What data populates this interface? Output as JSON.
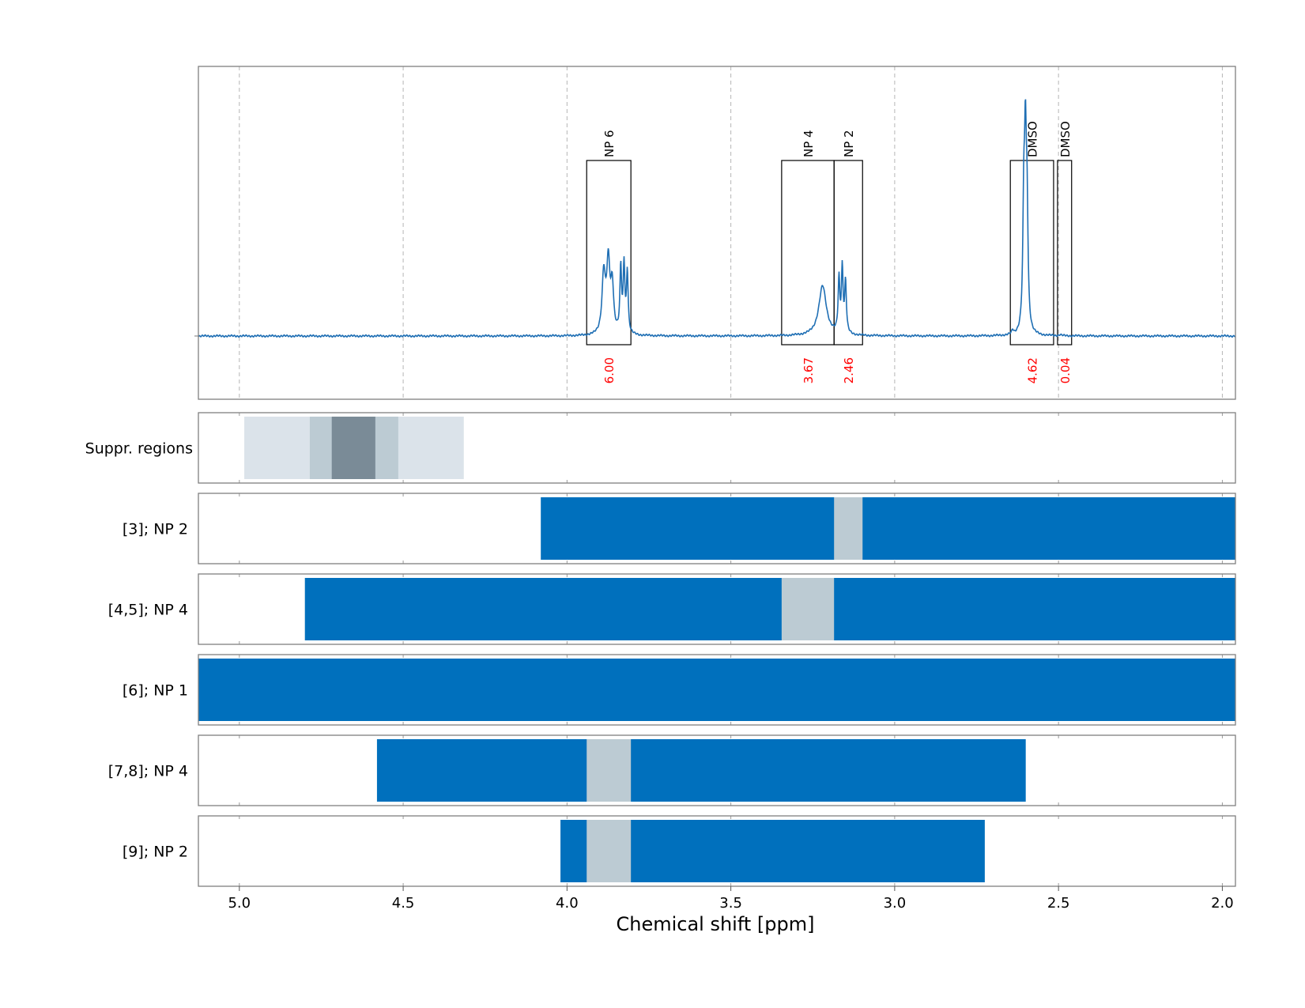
{
  "chart_data": {
    "type": "line",
    "xlabel": "Chemical shift [ppm]",
    "x_axis": {
      "lim": [
        5.125,
        1.96
      ],
      "reversed": true,
      "ticks": [
        "5.0",
        "4.5",
        "4.0",
        "3.5",
        "3.0",
        "2.5",
        "2.0"
      ],
      "tick_values": [
        5.0,
        4.5,
        4.0,
        3.5,
        3.0,
        2.5,
        2.0
      ]
    },
    "grid": true,
    "colors": {
      "spectrum": "#1f6fb4",
      "bar": "#0070bd",
      "gap": "#bccbd3",
      "integral": "#ff0000",
      "box": "#000000",
      "axis_frame": "#808080"
    },
    "spectrum": {
      "baseline_y": 0.0,
      "peaks": [
        {
          "x": 3.888,
          "y": 0.22,
          "w": 0.006
        },
        {
          "x": 3.874,
          "y": 0.26,
          "w": 0.006
        },
        {
          "x": 3.862,
          "y": 0.17,
          "w": 0.005
        },
        {
          "x": 3.836,
          "y": 0.24,
          "w": 0.003
        },
        {
          "x": 3.826,
          "y": 0.25,
          "w": 0.003
        },
        {
          "x": 3.816,
          "y": 0.23,
          "w": 0.003
        },
        {
          "x": 3.22,
          "y": 0.185,
          "w": 0.014
        },
        {
          "x": 3.17,
          "y": 0.2,
          "w": 0.003
        },
        {
          "x": 3.16,
          "y": 0.24,
          "w": 0.003
        },
        {
          "x": 3.15,
          "y": 0.19,
          "w": 0.003
        },
        {
          "x": 2.606,
          "y": 0.42,
          "w": 0.0035
        },
        {
          "x": 2.601,
          "y": 0.62,
          "w": 0.0035
        },
        {
          "x": 2.596,
          "y": 0.4,
          "w": 0.0035
        },
        {
          "x": 2.64,
          "y": 0.015,
          "w": 0.003
        },
        {
          "x": 2.495,
          "y": 0.004,
          "w": 0.004
        }
      ]
    },
    "annotations": [
      {
        "label": "NP 6",
        "x_from": 3.94,
        "x_to": 3.805,
        "integral": "6.00"
      },
      {
        "label": "NP 4",
        "x_from": 3.345,
        "x_to": 3.185,
        "integral": "3.67"
      },
      {
        "label": "NP 2",
        "x_from": 3.185,
        "x_to": 3.098,
        "integral": "2.46"
      },
      {
        "label": "DMSO",
        "x_from": 2.647,
        "x_to": 2.515,
        "integral": "4.62"
      },
      {
        "label": "DMSO",
        "x_from": 2.503,
        "x_to": 2.46,
        "integral": "0.04"
      }
    ],
    "suppression": {
      "label": "Suppr. regions",
      "layers": [
        {
          "x_from": 4.985,
          "x_to": 4.315,
          "shade": "#dbe3ea"
        },
        {
          "x_from": 4.785,
          "x_to": 4.515,
          "shade": "#bccbd3"
        },
        {
          "x_from": 4.718,
          "x_to": 4.585,
          "shade": "#7a8b97"
        }
      ]
    },
    "tracks": [
      {
        "label": "[3]; NP 2",
        "x_from": 4.08,
        "x_to": 1.96,
        "gap": [
          3.185,
          3.098
        ]
      },
      {
        "label": "[4,5]; NP 4",
        "x_from": 4.8,
        "x_to": 1.96,
        "gap": [
          3.345,
          3.185
        ]
      },
      {
        "label": "[6]; NP 1",
        "x_from": 5.125,
        "x_to": 1.96,
        "gap": null
      },
      {
        "label": "[7,8]; NP 4",
        "x_from": 4.58,
        "x_to": 2.6,
        "gap": [
          3.94,
          3.805
        ]
      },
      {
        "label": "[9]; NP 2",
        "x_from": 4.02,
        "x_to": 2.725,
        "gap": [
          3.94,
          3.805
        ]
      }
    ]
  }
}
